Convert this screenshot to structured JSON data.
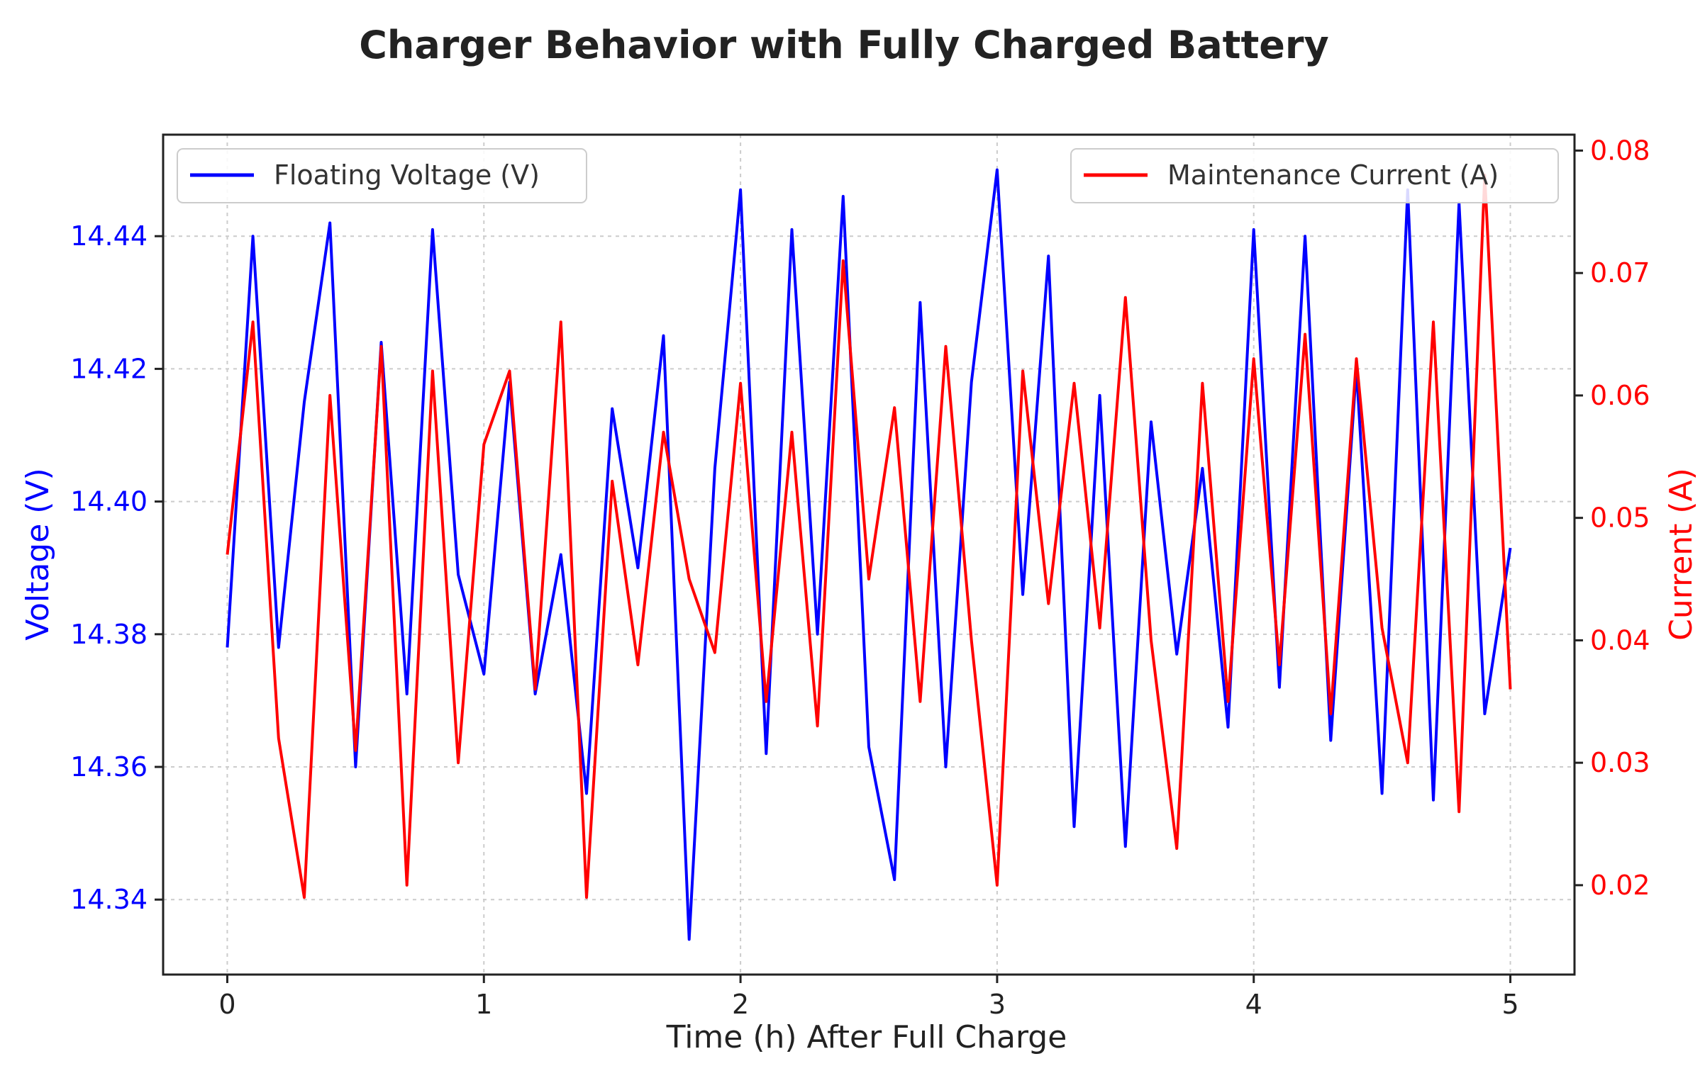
{
  "chart_data": {
    "type": "line",
    "title": "Charger Behavior with Fully Charged Battery",
    "xlabel": "Time (h) After Full Charge",
    "ylabel_left": "Voltage (V)",
    "ylabel_right": "Current (A)",
    "xlim": [
      -0.25,
      5.25
    ],
    "ylim_left": [
      14.3287,
      14.4553
    ],
    "ylim_right": [
      0.0127,
      0.0813
    ],
    "x_ticks": [
      "0",
      "1",
      "2",
      "3",
      "4",
      "5"
    ],
    "y_left_ticks": [
      "14.34",
      "14.36",
      "14.38",
      "14.40",
      "14.42",
      "14.44"
    ],
    "y_right_ticks": [
      "0.02",
      "0.03",
      "0.04",
      "0.05",
      "0.06",
      "0.07",
      "0.08"
    ],
    "grid": true,
    "colors": {
      "voltage": "#0000ff",
      "current": "#ff0000",
      "axis": "#222222",
      "grid": "#cccccc"
    },
    "series": [
      {
        "name": "Floating Voltage (V)",
        "axis": "left",
        "color": "#0000ff",
        "x": [
          0.0,
          0.1,
          0.2,
          0.3,
          0.4,
          0.5,
          0.6,
          0.7,
          0.8,
          0.9,
          1.0,
          1.1,
          1.2,
          1.3,
          1.4,
          1.5,
          1.6,
          1.7,
          1.8,
          1.9,
          2.0,
          2.1,
          2.2,
          2.3,
          2.4,
          2.5,
          2.6,
          2.7,
          2.8,
          2.9,
          3.0,
          3.1,
          3.2,
          3.3,
          3.4,
          3.5,
          3.6,
          3.7,
          3.8,
          3.9,
          4.0,
          4.1,
          4.2,
          4.3,
          4.4,
          4.5,
          4.6,
          4.7,
          4.8,
          4.9,
          5.0
        ],
        "y": [
          14.378,
          14.44,
          14.378,
          14.415,
          14.442,
          14.36,
          14.424,
          14.371,
          14.441,
          14.389,
          14.374,
          14.418,
          14.371,
          14.392,
          14.356,
          14.414,
          14.39,
          14.425,
          14.334,
          14.405,
          14.447,
          14.362,
          14.441,
          14.38,
          14.446,
          14.363,
          14.343,
          14.43,
          14.36,
          14.418,
          14.45,
          14.386,
          14.437,
          14.351,
          14.416,
          14.348,
          14.412,
          14.377,
          14.405,
          14.366,
          14.441,
          14.372,
          14.44,
          14.364,
          14.42,
          14.356,
          14.447,
          14.355,
          14.445,
          14.368,
          14.393
        ]
      },
      {
        "name": "Maintenance Current (A)",
        "axis": "right",
        "color": "#ff0000",
        "x": [
          0.0,
          0.1,
          0.2,
          0.3,
          0.4,
          0.5,
          0.6,
          0.7,
          0.8,
          0.9,
          1.0,
          1.1,
          1.2,
          1.3,
          1.4,
          1.5,
          1.6,
          1.7,
          1.8,
          1.9,
          2.0,
          2.1,
          2.2,
          2.3,
          2.4,
          2.5,
          2.6,
          2.7,
          2.8,
          2.9,
          3.0,
          3.1,
          3.2,
          3.3,
          3.4,
          3.5,
          3.6,
          3.7,
          3.8,
          3.9,
          4.0,
          4.1,
          4.2,
          4.3,
          4.4,
          4.5,
          4.6,
          4.7,
          4.8,
          4.9,
          5.0
        ],
        "y": [
          0.047,
          0.066,
          0.032,
          0.019,
          0.06,
          0.031,
          0.064,
          0.02,
          0.062,
          0.03,
          0.056,
          0.062,
          0.036,
          0.066,
          0.019,
          0.053,
          0.038,
          0.057,
          0.045,
          0.039,
          0.061,
          0.035,
          0.057,
          0.033,
          0.071,
          0.045,
          0.059,
          0.035,
          0.064,
          0.04,
          0.02,
          0.062,
          0.043,
          0.061,
          0.041,
          0.068,
          0.04,
          0.023,
          0.061,
          0.035,
          0.063,
          0.038,
          0.065,
          0.034,
          0.063,
          0.041,
          0.03,
          0.066,
          0.026,
          0.078,
          0.036
        ]
      }
    ]
  }
}
